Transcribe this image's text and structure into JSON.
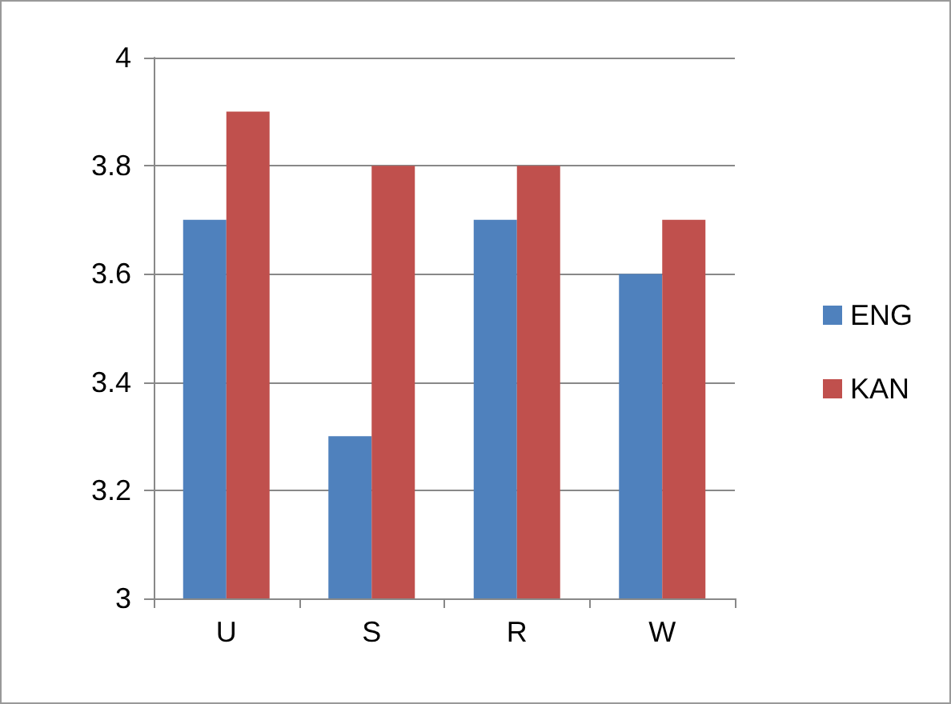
{
  "chart_data": {
    "type": "bar",
    "categories": [
      "U",
      "S",
      "R",
      "W"
    ],
    "series": [
      {
        "name": "ENG",
        "color": "#4f81bd",
        "values": [
          3.7,
          3.3,
          3.7,
          3.6
        ]
      },
      {
        "name": "KAN",
        "color": "#c0504d",
        "values": [
          3.9,
          3.8,
          3.8,
          3.7
        ]
      }
    ],
    "ylim": [
      3,
      4
    ],
    "yticks": [
      3,
      3.2,
      3.4,
      3.6,
      3.8,
      4
    ],
    "grid": "y",
    "legend": "right"
  }
}
